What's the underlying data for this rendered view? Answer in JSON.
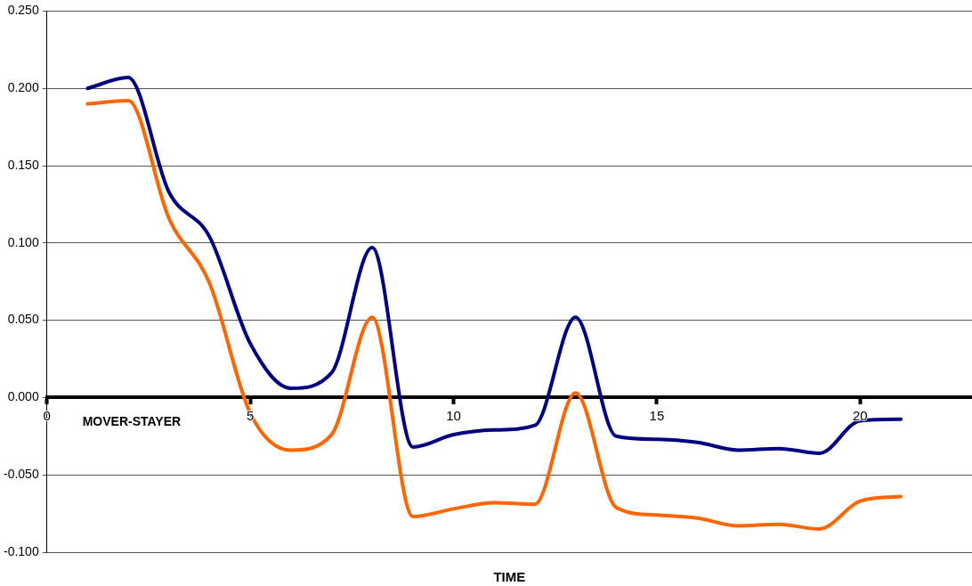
{
  "chart_data": {
    "type": "line",
    "xlabel": "TIME",
    "annotations": [
      "MOVER-STAYER"
    ],
    "x": [
      1,
      2,
      3,
      4,
      5,
      6,
      7,
      8,
      9,
      10,
      11,
      12,
      13,
      14,
      15,
      16,
      17,
      18,
      19,
      20,
      21
    ],
    "series": [
      {
        "color": "#000080",
        "values": [
          0.2,
          0.207,
          0.133,
          0.104,
          0.035,
          0.006,
          0.016,
          0.097,
          -0.032,
          -0.024,
          -0.021,
          -0.018,
          0.052,
          -0.025,
          -0.027,
          -0.029,
          -0.034,
          -0.033,
          -0.036,
          -0.015,
          -0.014
        ]
      },
      {
        "color": "#ff6600",
        "values": [
          0.19,
          0.192,
          0.116,
          0.074,
          -0.01,
          -0.034,
          -0.024,
          0.052,
          -0.077,
          -0.072,
          -0.068,
          -0.069,
          0.003,
          -0.071,
          -0.076,
          -0.078,
          -0.083,
          -0.082,
          -0.085,
          -0.067,
          -0.064
        ]
      }
    ],
    "xlim": [
      0,
      22.75
    ],
    "xticks": [
      0,
      5,
      10,
      15,
      20
    ],
    "ylim": [
      -0.1,
      0.25
    ],
    "yticks": [
      {
        "value": -0.1,
        "label": "-0.100"
      },
      {
        "value": -0.05,
        "label": "-0.050"
      },
      {
        "value": 0,
        "label": "0.000"
      },
      {
        "value": 0.05,
        "label": "0.050"
      },
      {
        "value": 0.1,
        "label": "0.100"
      },
      {
        "value": 0.15,
        "label": "0.150"
      },
      {
        "value": 0.2,
        "label": "0.200"
      },
      {
        "value": 0.25,
        "label": "0.250"
      }
    ],
    "grid": "y",
    "legend": false,
    "marker": "none",
    "line_style": "solid"
  }
}
